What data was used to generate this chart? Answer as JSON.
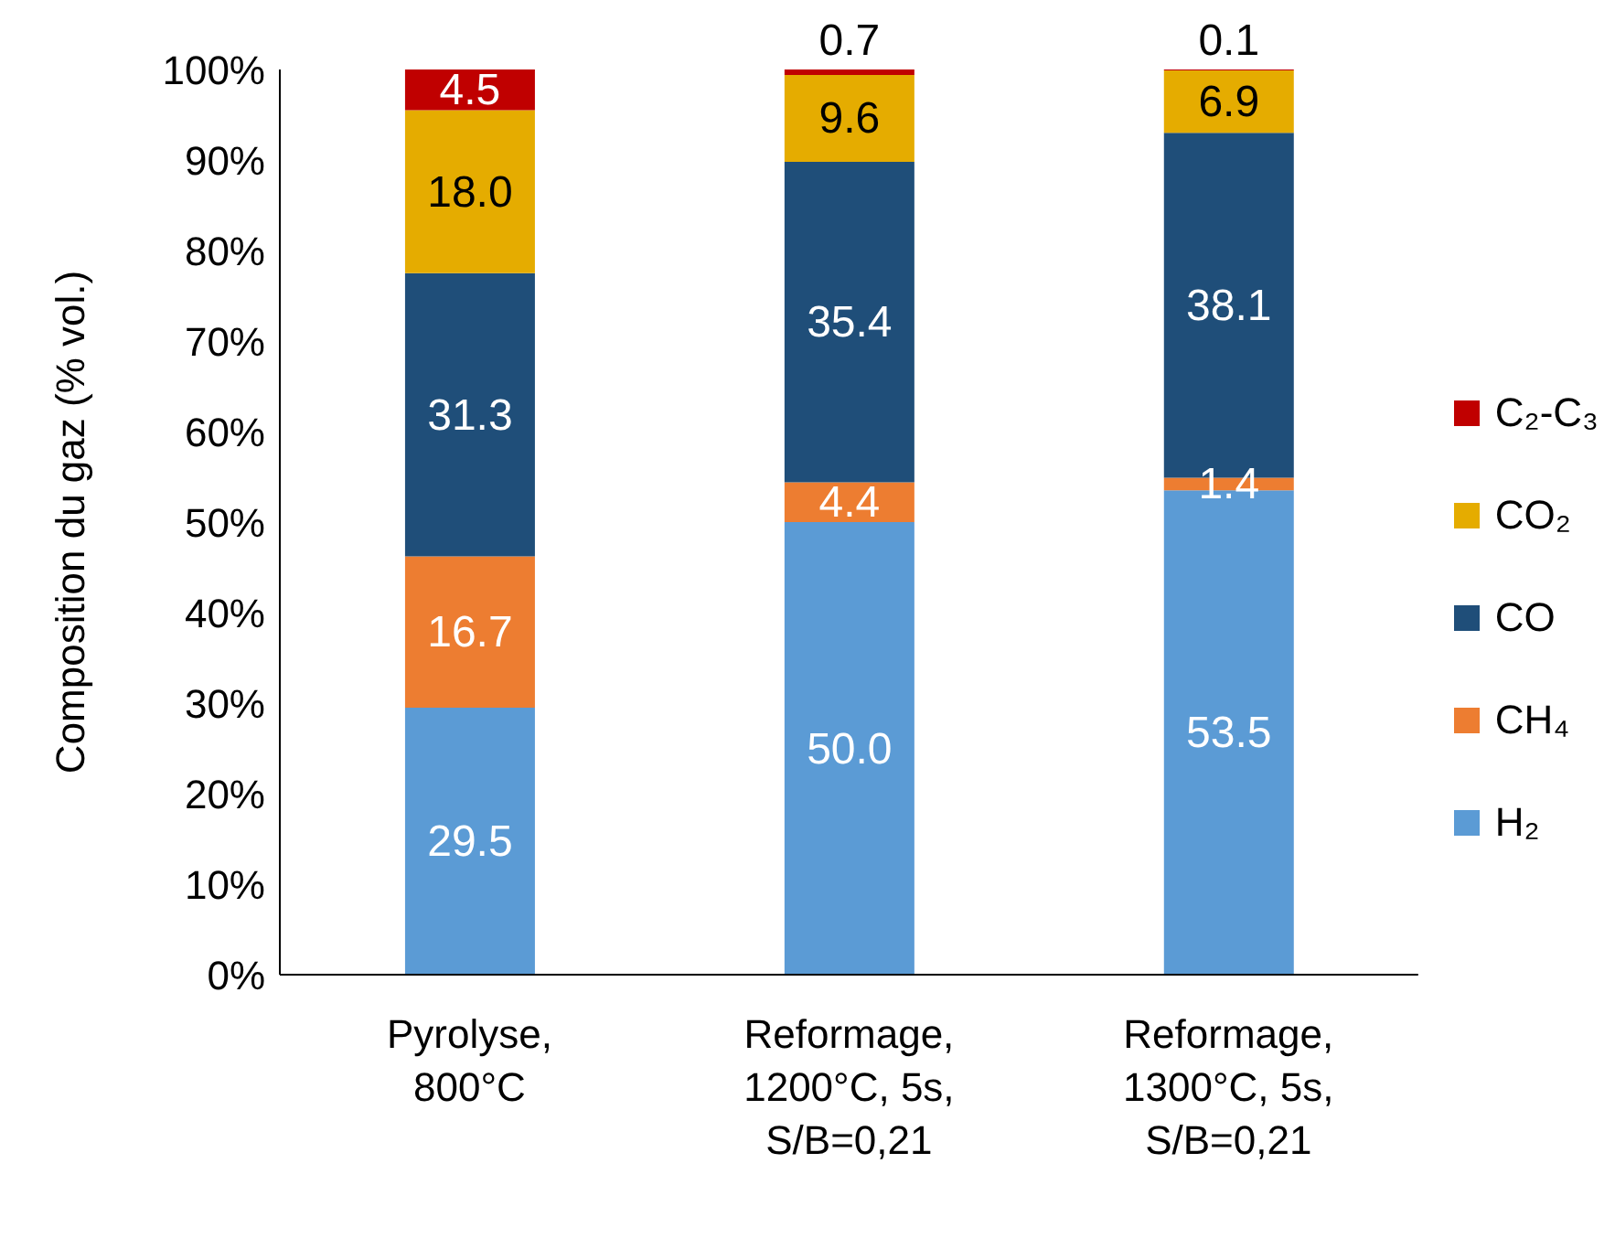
{
  "chart_data": {
    "type": "bar",
    "stacked": true,
    "ylabel": "Composition du gaz (% vol.)",
    "categories": [
      "Pyrolyse,\n800°C",
      "Reformage,\n1200°C, 5s,\nS/B=0,21",
      "Reformage,\n1300°C, 5s,\nS/B=0,21"
    ],
    "series": [
      {
        "name": "H₂",
        "color": "#5b9bd5",
        "values": [
          29.5,
          50.0,
          53.5
        ],
        "value_labels": [
          "29.5",
          "50.0",
          "53.5"
        ]
      },
      {
        "name": "CH₄",
        "color": "#ed7d31",
        "values": [
          16.7,
          4.4,
          1.4
        ],
        "value_labels": [
          "16.7",
          "4.4",
          "1.4"
        ]
      },
      {
        "name": "CO",
        "color": "#1f4e79",
        "values": [
          31.3,
          35.4,
          38.1
        ],
        "value_labels": [
          "31.3",
          "35.4",
          "38.1"
        ]
      },
      {
        "name": "CO₂",
        "color": "#e5ac00",
        "values": [
          18.0,
          9.6,
          6.9
        ],
        "value_labels": [
          "18.0",
          "9.6",
          "6.9"
        ]
      },
      {
        "name": "C₂-C₃",
        "color": "#c00000",
        "values": [
          4.5,
          0.7,
          0.1
        ],
        "value_labels": [
          "4.5",
          "0.7",
          "0.1"
        ]
      }
    ],
    "ylim": [
      0,
      100
    ],
    "yticks": [
      {
        "value": 0,
        "label": "0%"
      },
      {
        "value": 10,
        "label": "10%"
      },
      {
        "value": 20,
        "label": "20%"
      },
      {
        "value": 30,
        "label": "30%"
      },
      {
        "value": 40,
        "label": "40%"
      },
      {
        "value": 50,
        "label": "50%"
      },
      {
        "value": 60,
        "label": "60%"
      },
      {
        "value": 70,
        "label": "70%"
      },
      {
        "value": 80,
        "label": "80%"
      },
      {
        "value": 90,
        "label": "90%"
      },
      {
        "value": 100,
        "label": "100%"
      }
    ],
    "grid": false,
    "legend": "right"
  }
}
